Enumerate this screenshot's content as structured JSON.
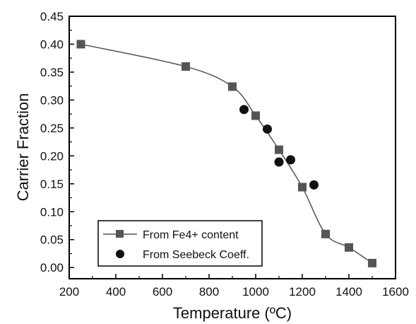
{
  "chart_data": {
    "type": "scatter",
    "xlabel": "Temperature (ºC)",
    "ylabel": "Carrier Fraction",
    "xlim": [
      200,
      1600
    ],
    "ylim": [
      -0.02,
      0.45
    ],
    "xticks": [
      200,
      400,
      600,
      800,
      1000,
      1200,
      1400,
      1600
    ],
    "yticks": [
      0.0,
      0.05,
      0.1,
      0.15,
      0.2,
      0.25,
      0.3,
      0.35,
      0.4,
      0.45
    ],
    "legend_position": "bottom-left",
    "grid": false,
    "series": [
      {
        "name": "From Fe4+ content",
        "marker": "square",
        "line": true,
        "color": "#555555",
        "x": [
          250,
          700,
          900,
          1000,
          1100,
          1200,
          1300,
          1400,
          1500
        ],
        "y": [
          0.4,
          0.36,
          0.324,
          0.272,
          0.211,
          0.144,
          0.06,
          0.036,
          0.008
        ]
      },
      {
        "name": "From Seebeck Coeff.",
        "marker": "circle",
        "line": false,
        "color": "#111111",
        "x": [
          950,
          1050,
          1100,
          1150,
          1250
        ],
        "y": [
          0.283,
          0.248,
          0.189,
          0.193,
          0.148
        ]
      }
    ]
  }
}
